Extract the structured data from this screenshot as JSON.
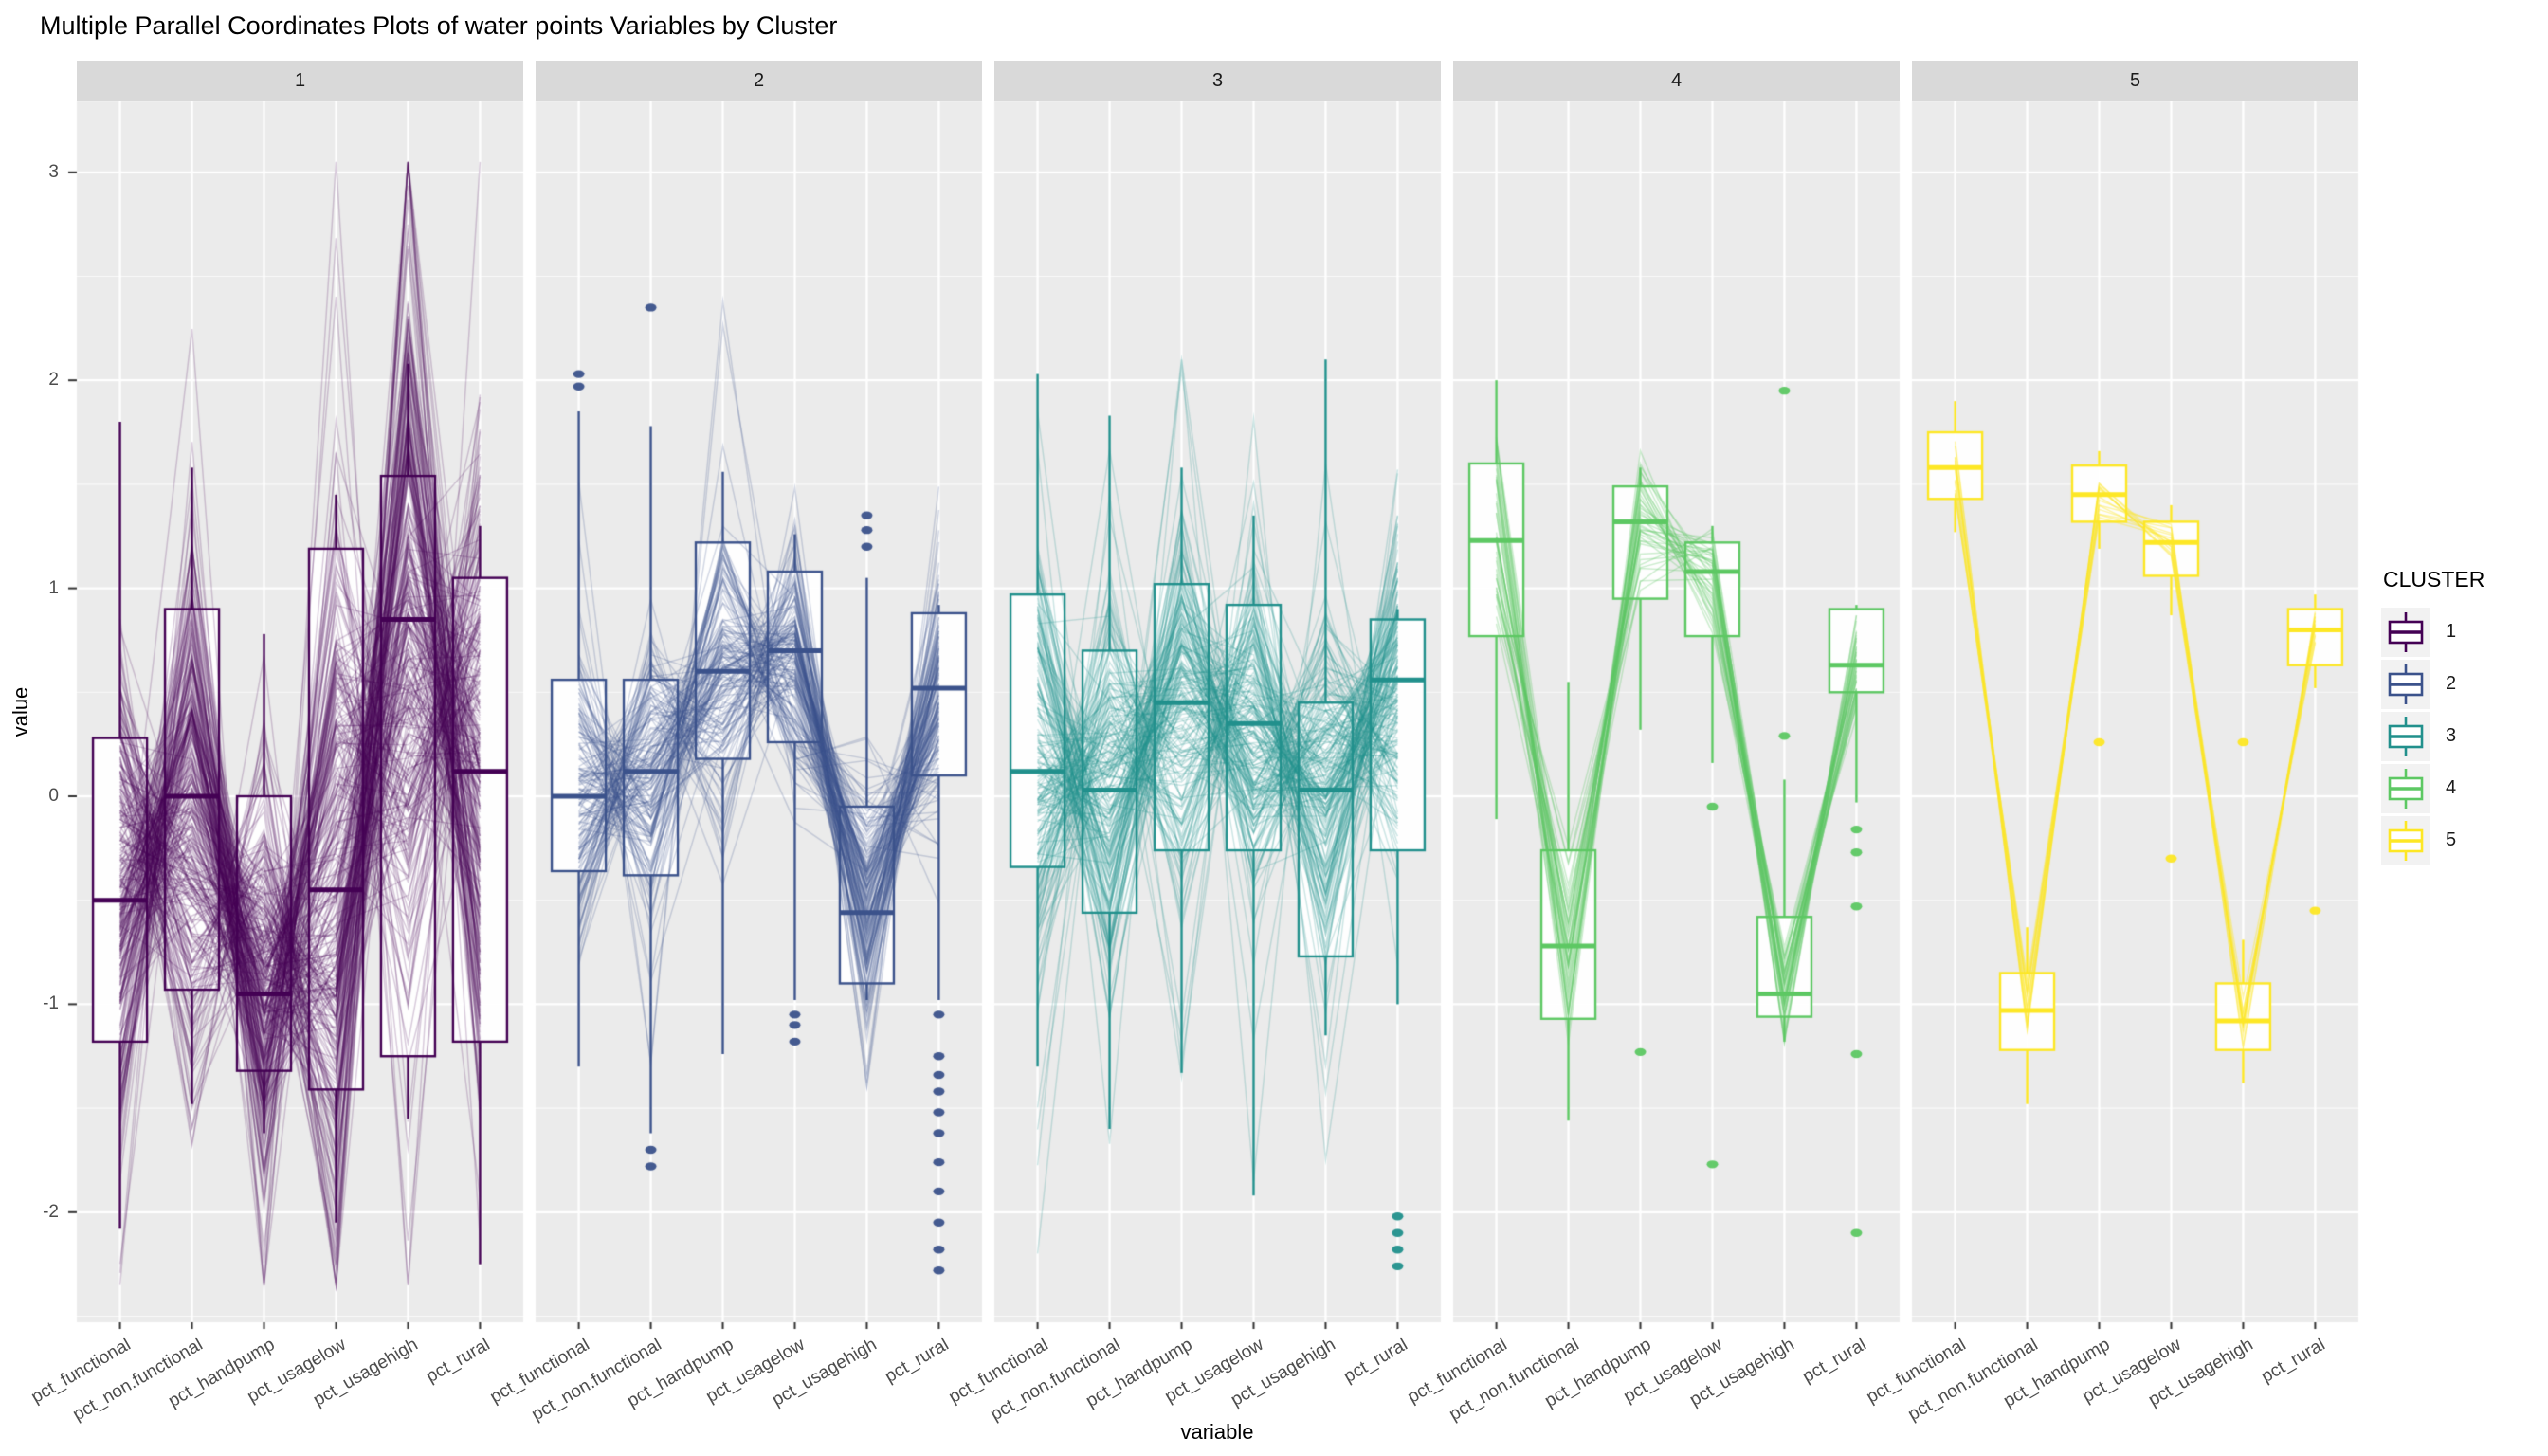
{
  "title": "Multiple Parallel Coordinates Plots of water points Variables by Cluster",
  "x_axis_title": "variable",
  "y_axis_title": "value",
  "facets": [
    "1",
    "2",
    "3",
    "4",
    "5"
  ],
  "y_ticks": [
    3,
    2,
    1,
    0,
    -1,
    -2
  ],
  "variables": [
    "pct_functional",
    "pct_non.functional",
    "pct_handpump",
    "pct_usagelow",
    "pct_usagehigh",
    "pct_rural"
  ],
  "legend": {
    "title": "CLUSTER",
    "entries": [
      {
        "label": "1",
        "color": "#440154"
      },
      {
        "label": "2",
        "color": "#3B528B"
      },
      {
        "label": "3",
        "color": "#21908C"
      },
      {
        "label": "4",
        "color": "#5DC863"
      },
      {
        "label": "5",
        "color": "#FDE725"
      }
    ]
  },
  "theme": {
    "panel_bg": "#EBEBEB",
    "strip_bg": "#D9D9D9",
    "grid_color": "#FFFFFF",
    "axis_text": "#4D4D4D",
    "tick_mark": "#333333",
    "box_fill": "rgba(255,255,255,0.92)",
    "legend_key_bg": "#F2F2F2",
    "background": "#FFFFFF"
  },
  "chart_data": {
    "type": "parallel-coordinates-with-boxplots",
    "title": "Multiple Parallel Coordinates Plots of water points Variables by Cluster",
    "xlabel": "variable",
    "ylabel": "value",
    "ylim": [
      -2.53,
      3.34
    ],
    "grid": true,
    "legend_position": "right",
    "categories": [
      "pct_functional",
      "pct_non.functional",
      "pct_handpump",
      "pct_usagelow",
      "pct_usagehigh",
      "pct_rural"
    ],
    "clusters": [
      {
        "label": "1",
        "color": "#440154",
        "n_lines": 300,
        "line_alpha": 0.2,
        "spread": 1.0,
        "line_range": [
          -2.35,
          3.05
        ],
        "boxes": [
          {
            "var": "pct_functional",
            "q1": -1.18,
            "median": -0.5,
            "q3": 0.28,
            "whisker_low": -2.08,
            "whisker_high": 1.8,
            "outliers": []
          },
          {
            "var": "pct_non.functional",
            "q1": -0.93,
            "median": 0.0,
            "q3": 0.9,
            "whisker_low": -1.48,
            "whisker_high": 1.58,
            "outliers": []
          },
          {
            "var": "pct_handpump",
            "q1": -1.32,
            "median": -0.95,
            "q3": 0.0,
            "whisker_low": -1.62,
            "whisker_high": 0.78,
            "outliers": []
          },
          {
            "var": "pct_usagelow",
            "q1": -1.41,
            "median": -0.45,
            "q3": 1.19,
            "whisker_low": -2.05,
            "whisker_high": 1.45,
            "outliers": []
          },
          {
            "var": "pct_usagehigh",
            "q1": -1.25,
            "median": 0.85,
            "q3": 1.54,
            "whisker_low": -1.55,
            "whisker_high": 2.08,
            "outliers": []
          },
          {
            "var": "pct_rural",
            "q1": -1.18,
            "median": 0.12,
            "q3": 1.05,
            "whisker_low": -2.25,
            "whisker_high": 1.3,
            "outliers": []
          }
        ]
      },
      {
        "label": "2",
        "color": "#3B528B",
        "n_lines": 160,
        "line_alpha": 0.22,
        "spread": 1.0,
        "line_range": [
          -2.25,
          2.38
        ],
        "boxes": [
          {
            "var": "pct_functional",
            "q1": -0.36,
            "median": 0.0,
            "q3": 0.56,
            "whisker_low": -1.3,
            "whisker_high": 1.85,
            "outliers": [
              2.03,
              1.97
            ]
          },
          {
            "var": "pct_non.functional",
            "q1": -0.38,
            "median": 0.12,
            "q3": 0.56,
            "whisker_low": -1.62,
            "whisker_high": 1.78,
            "outliers": [
              2.35,
              -1.7,
              -1.78
            ]
          },
          {
            "var": "pct_handpump",
            "q1": 0.18,
            "median": 0.6,
            "q3": 1.22,
            "whisker_low": -1.24,
            "whisker_high": 1.56,
            "outliers": []
          },
          {
            "var": "pct_usagelow",
            "q1": 0.26,
            "median": 0.7,
            "q3": 1.08,
            "whisker_low": -0.98,
            "whisker_high": 1.26,
            "outliers": [
              -1.05,
              -1.1,
              -1.18
            ]
          },
          {
            "var": "pct_usagehigh",
            "q1": -0.9,
            "median": -0.56,
            "q3": -0.05,
            "whisker_low": -0.98,
            "whisker_high": 1.05,
            "outliers": [
              1.35,
              1.28,
              1.2
            ]
          },
          {
            "var": "pct_rural",
            "q1": 0.1,
            "median": 0.52,
            "q3": 0.88,
            "whisker_low": -0.98,
            "whisker_high": 0.92,
            "outliers": [
              -1.05,
              -1.25,
              -1.34,
              -1.42,
              -1.52,
              -1.62,
              -1.76,
              -1.9,
              -2.05,
              -2.18,
              -2.28
            ]
          }
        ]
      },
      {
        "label": "3",
        "color": "#21908C",
        "n_lines": 200,
        "line_alpha": 0.22,
        "spread": 1.0,
        "line_range": [
          -2.3,
          2.1
        ],
        "boxes": [
          {
            "var": "pct_functional",
            "q1": -0.34,
            "median": 0.12,
            "q3": 0.97,
            "whisker_low": -1.3,
            "whisker_high": 2.03,
            "outliers": []
          },
          {
            "var": "pct_non.functional",
            "q1": -0.56,
            "median": 0.03,
            "q3": 0.7,
            "whisker_low": -1.6,
            "whisker_high": 1.83,
            "outliers": []
          },
          {
            "var": "pct_handpump",
            "q1": -0.26,
            "median": 0.45,
            "q3": 1.02,
            "whisker_low": -1.33,
            "whisker_high": 1.58,
            "outliers": []
          },
          {
            "var": "pct_usagelow",
            "q1": -0.26,
            "median": 0.35,
            "q3": 0.92,
            "whisker_low": -1.92,
            "whisker_high": 1.35,
            "outliers": []
          },
          {
            "var": "pct_usagehigh",
            "q1": -0.77,
            "median": 0.03,
            "q3": 0.45,
            "whisker_low": -1.15,
            "whisker_high": 2.1,
            "outliers": []
          },
          {
            "var": "pct_rural",
            "q1": -0.26,
            "median": 0.56,
            "q3": 0.85,
            "whisker_low": -1.0,
            "whisker_high": 0.9,
            "outliers": [
              -2.02,
              -2.1,
              -2.18,
              -2.26
            ]
          }
        ]
      },
      {
        "label": "4",
        "color": "#5DC863",
        "n_lines": 42,
        "line_alpha": 0.3,
        "spread": 0.8,
        "line_range": [
          -1.9,
          2.02
        ],
        "boxes": [
          {
            "var": "pct_functional",
            "q1": 0.77,
            "median": 1.23,
            "q3": 1.6,
            "whisker_low": -0.11,
            "whisker_high": 2.0,
            "outliers": []
          },
          {
            "var": "pct_non.functional",
            "q1": -1.07,
            "median": -0.72,
            "q3": -0.26,
            "whisker_low": -1.56,
            "whisker_high": 0.55,
            "outliers": []
          },
          {
            "var": "pct_handpump",
            "q1": 0.95,
            "median": 1.32,
            "q3": 1.49,
            "whisker_low": 0.32,
            "whisker_high": 1.58,
            "outliers": [
              -1.23
            ]
          },
          {
            "var": "pct_usagelow",
            "q1": 0.77,
            "median": 1.08,
            "q3": 1.22,
            "whisker_low": 0.16,
            "whisker_high": 1.3,
            "outliers": [
              -0.05,
              -1.77
            ]
          },
          {
            "var": "pct_usagehigh",
            "q1": -1.06,
            "median": -0.95,
            "q3": -0.58,
            "whisker_low": -1.18,
            "whisker_high": 0.08,
            "outliers": [
              1.95,
              0.29
            ]
          },
          {
            "var": "pct_rural",
            "q1": 0.5,
            "median": 0.63,
            "q3": 0.9,
            "whisker_low": -0.03,
            "whisker_high": 0.92,
            "outliers": [
              -0.16,
              -0.27,
              -0.53,
              -1.24,
              -2.1
            ]
          }
        ]
      },
      {
        "label": "5",
        "color": "#FDE725",
        "n_lines": 14,
        "line_alpha": 0.4,
        "spread": 0.55,
        "line_range": [
          -1.45,
          1.9
        ],
        "boxes": [
          {
            "var": "pct_functional",
            "q1": 1.43,
            "median": 1.58,
            "q3": 1.75,
            "whisker_low": 1.27,
            "whisker_high": 1.9,
            "outliers": []
          },
          {
            "var": "pct_non.functional",
            "q1": -1.22,
            "median": -1.03,
            "q3": -0.85,
            "whisker_low": -1.48,
            "whisker_high": -0.63,
            "outliers": []
          },
          {
            "var": "pct_handpump",
            "q1": 1.32,
            "median": 1.45,
            "q3": 1.59,
            "whisker_low": 1.19,
            "whisker_high": 1.66,
            "outliers": [
              0.26
            ]
          },
          {
            "var": "pct_usagelow",
            "q1": 1.06,
            "median": 1.22,
            "q3": 1.32,
            "whisker_low": 0.87,
            "whisker_high": 1.4,
            "outliers": [
              -0.3
            ]
          },
          {
            "var": "pct_usagehigh",
            "q1": -1.22,
            "median": -1.08,
            "q3": -0.9,
            "whisker_low": -1.38,
            "whisker_high": -0.69,
            "outliers": [
              0.26
            ]
          },
          {
            "var": "pct_rural",
            "q1": 0.63,
            "median": 0.8,
            "q3": 0.9,
            "whisker_low": 0.52,
            "whisker_high": 0.97,
            "outliers": [
              -0.55
            ]
          }
        ]
      }
    ]
  }
}
